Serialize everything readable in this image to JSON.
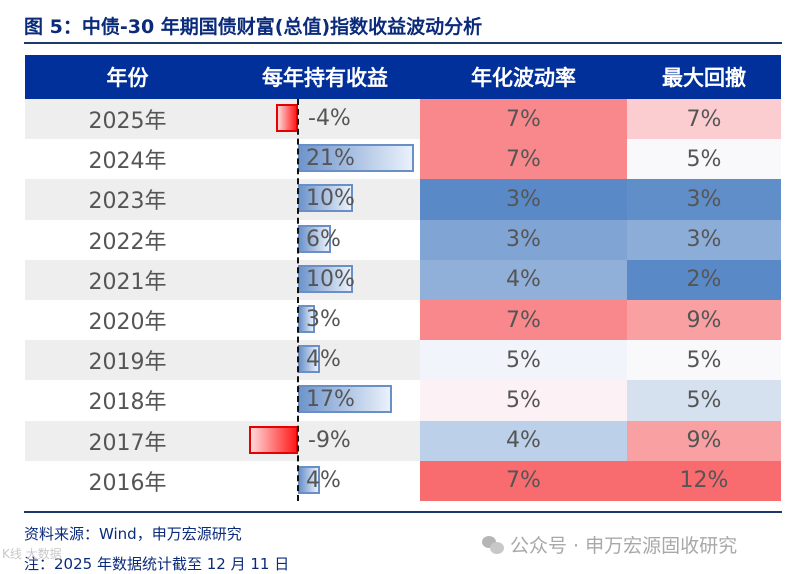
{
  "title": "图 5：中债-30 年期国债财富(总值)指数收益波动分析",
  "table": {
    "headers": [
      "年份",
      "每年持有收益",
      "年化波动率",
      "最大回撤"
    ],
    "rows": [
      {
        "year": "2025年",
        "ret": "-4%",
        "ret_val": -4,
        "vol": "7%",
        "vol_color": "#f8888b",
        "dd": "7%",
        "dd_color": "#fbcdd1"
      },
      {
        "year": "2024年",
        "ret": "21%",
        "ret_val": 21,
        "vol": "7%",
        "vol_color": "#f8888b",
        "dd": "5%",
        "dd_color": "#f9f9fc"
      },
      {
        "year": "2023年",
        "ret": "10%",
        "ret_val": 10,
        "vol": "3%",
        "vol_color": "#5a89c7",
        "dd": "3%",
        "dd_color": "#5f8ec8"
      },
      {
        "year": "2022年",
        "ret": "6%",
        "ret_val": 6,
        "vol": "3%",
        "vol_color": "#80a4d4",
        "dd": "3%",
        "dd_color": "#8badd8"
      },
      {
        "year": "2021年",
        "ret": "10%",
        "ret_val": 10,
        "vol": "4%",
        "vol_color": "#90b0da",
        "dd": "2%",
        "dd_color": "#5a89c7"
      },
      {
        "year": "2020年",
        "ret": "3%",
        "ret_val": 3,
        "vol": "7%",
        "vol_color": "#f8888b",
        "dd": "9%",
        "dd_color": "#f9a0a3"
      },
      {
        "year": "2019年",
        "ret": "4%",
        "ret_val": 4,
        "vol": "5%",
        "vol_color": "#f1f4fa",
        "dd": "5%",
        "dd_color": "#f9f9fc"
      },
      {
        "year": "2018年",
        "ret": "17%",
        "ret_val": 17,
        "vol": "5%",
        "vol_color": "#fcf1f4",
        "dd": "5%",
        "dd_color": "#d6e1ef"
      },
      {
        "year": "2017年",
        "ret": "-9%",
        "ret_val": -9,
        "vol": "4%",
        "vol_color": "#bdd0e9",
        "dd": "9%",
        "dd_color": "#f9a0a3"
      },
      {
        "year": "2016年",
        "ret": "4%",
        "ret_val": 4,
        "vol": "7%",
        "vol_color": "#f86b6e",
        "dd": "12%",
        "dd_color": "#f86b6e"
      }
    ]
  },
  "footer": {
    "source": "资料来源：Wind，申万宏源研究",
    "note": "注：2025 年数据统计截至 12 月 11 日",
    "watermark": "公众号 · 申万宏源固收研究",
    "watermark2": "K线 大数据"
  },
  "chart_data": {
    "type": "table",
    "title": "图 5：中债-30 年期国债财富(总值)指数收益波动分析",
    "columns": [
      "年份",
      "每年持有收益",
      "年化波动率",
      "最大回撤"
    ],
    "categories": [
      "2025年",
      "2024年",
      "2023年",
      "2022年",
      "2021年",
      "2020年",
      "2019年",
      "2018年",
      "2017年",
      "2016年"
    ],
    "series": [
      {
        "name": "每年持有收益",
        "values": [
          -4,
          21,
          10,
          6,
          10,
          3,
          4,
          17,
          -9,
          4
        ],
        "unit": "%",
        "render": "data-bar"
      },
      {
        "name": "年化波动率",
        "values": [
          7,
          7,
          3,
          3,
          4,
          7,
          5,
          5,
          4,
          7
        ],
        "unit": "%",
        "render": "heatmap"
      },
      {
        "name": "最大回撤",
        "values": [
          7,
          5,
          3,
          3,
          2,
          9,
          5,
          5,
          9,
          12
        ],
        "unit": "%",
        "render": "heatmap"
      }
    ],
    "colors": {
      "header_bg": "#02309a",
      "positive_bar": "#6f95cc",
      "negative_bar": "#ff1a1a",
      "high": "#f86b6e",
      "low": "#5a89c7"
    }
  }
}
